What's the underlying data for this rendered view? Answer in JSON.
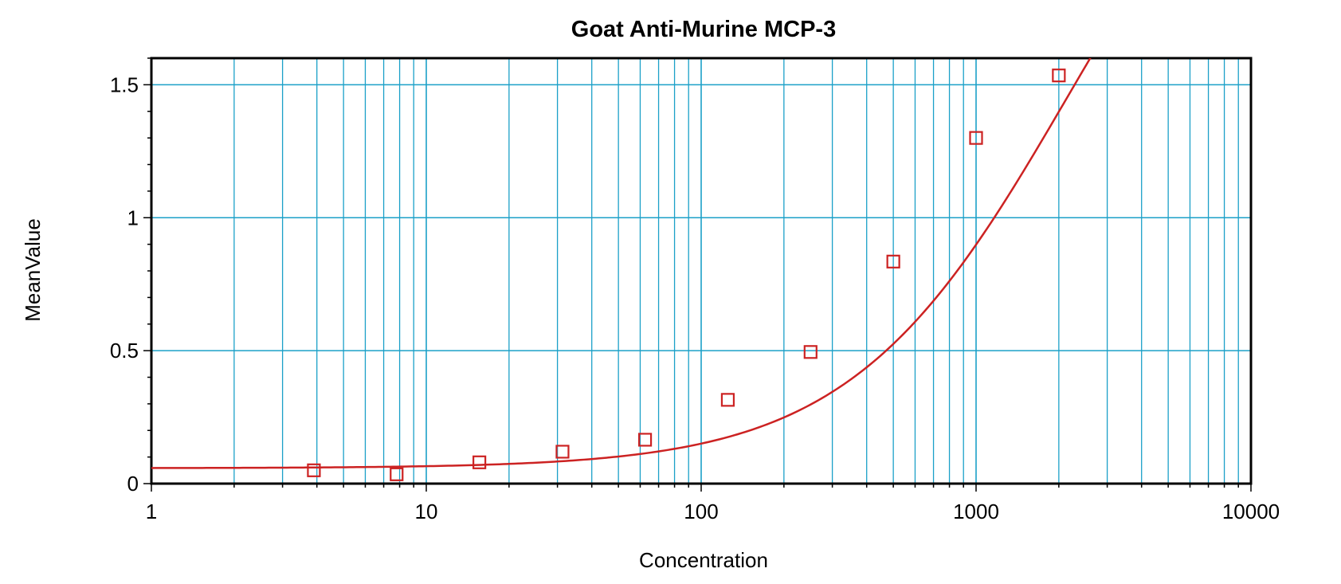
{
  "chart_data": {
    "type": "scatter",
    "title": "Goat Anti-Murine MCP-3",
    "xlabel": "Concentration",
    "ylabel": "MeanValue",
    "x_scale": "log",
    "xlim": [
      1,
      10000
    ],
    "ylim": [
      0,
      1.6
    ],
    "x_ticks": [
      {
        "value": 1,
        "label": "1"
      },
      {
        "value": 10,
        "label": "10"
      },
      {
        "value": 100,
        "label": "100"
      },
      {
        "value": 1000,
        "label": "1000"
      },
      {
        "value": 10000,
        "label": "10000"
      }
    ],
    "y_ticks": [
      {
        "value": 0,
        "label": "0"
      },
      {
        "value": 0.5,
        "label": "0.5"
      },
      {
        "value": 1,
        "label": "1"
      },
      {
        "value": 1.5,
        "label": "1.5"
      }
    ],
    "grid": true,
    "series": [
      {
        "color": "#cc2222",
        "marker": "open-square",
        "points": [
          {
            "x": 3.9,
            "y": 0.05
          },
          {
            "x": 7.8,
            "y": 0.035
          },
          {
            "x": 15.6,
            "y": 0.08
          },
          {
            "x": 31.3,
            "y": 0.12
          },
          {
            "x": 62.5,
            "y": 0.165
          },
          {
            "x": 125,
            "y": 0.315
          },
          {
            "x": 250,
            "y": 0.495
          },
          {
            "x": 500,
            "y": 0.835
          },
          {
            "x": 1000,
            "y": 1.3
          },
          {
            "x": 2000,
            "y": 1.535
          }
        ],
        "fit": {
          "model": "4PL",
          "bottom": 0.058,
          "top": 2.85,
          "ec50": 2150,
          "hill": 1.1
        }
      }
    ],
    "colors": {
      "grid": "#1ba0c8",
      "axis": "#000000",
      "series": "#cc2222"
    }
  }
}
